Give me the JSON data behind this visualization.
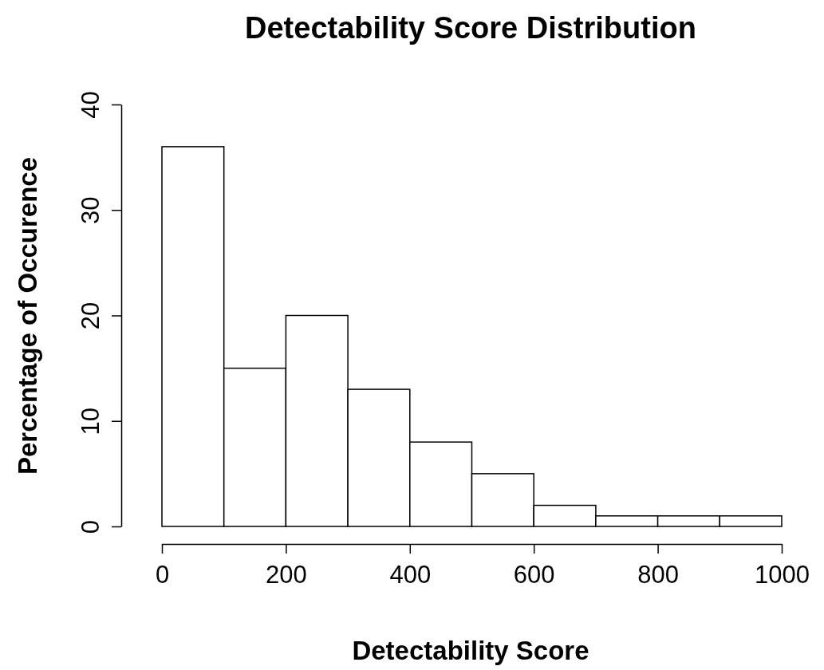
{
  "chart_data": {
    "type": "histogram",
    "title": "Detectability Score Distribution",
    "xlabel": "Detectability Score",
    "ylabel": "Percentage of Occurence",
    "bins": [
      0,
      100,
      200,
      300,
      400,
      500,
      600,
      700,
      800,
      900,
      1000
    ],
    "values": [
      36,
      15,
      20,
      13,
      8,
      5,
      2,
      1,
      1,
      1
    ],
    "color": "#ffffff",
    "xlim": [
      0,
      1000
    ],
    "xticks": [
      0,
      200,
      400,
      600,
      800,
      1000
    ],
    "ylim": [
      0,
      40
    ],
    "yticks": [
      0,
      10,
      20,
      30,
      40
    ],
    "grid": false
  }
}
